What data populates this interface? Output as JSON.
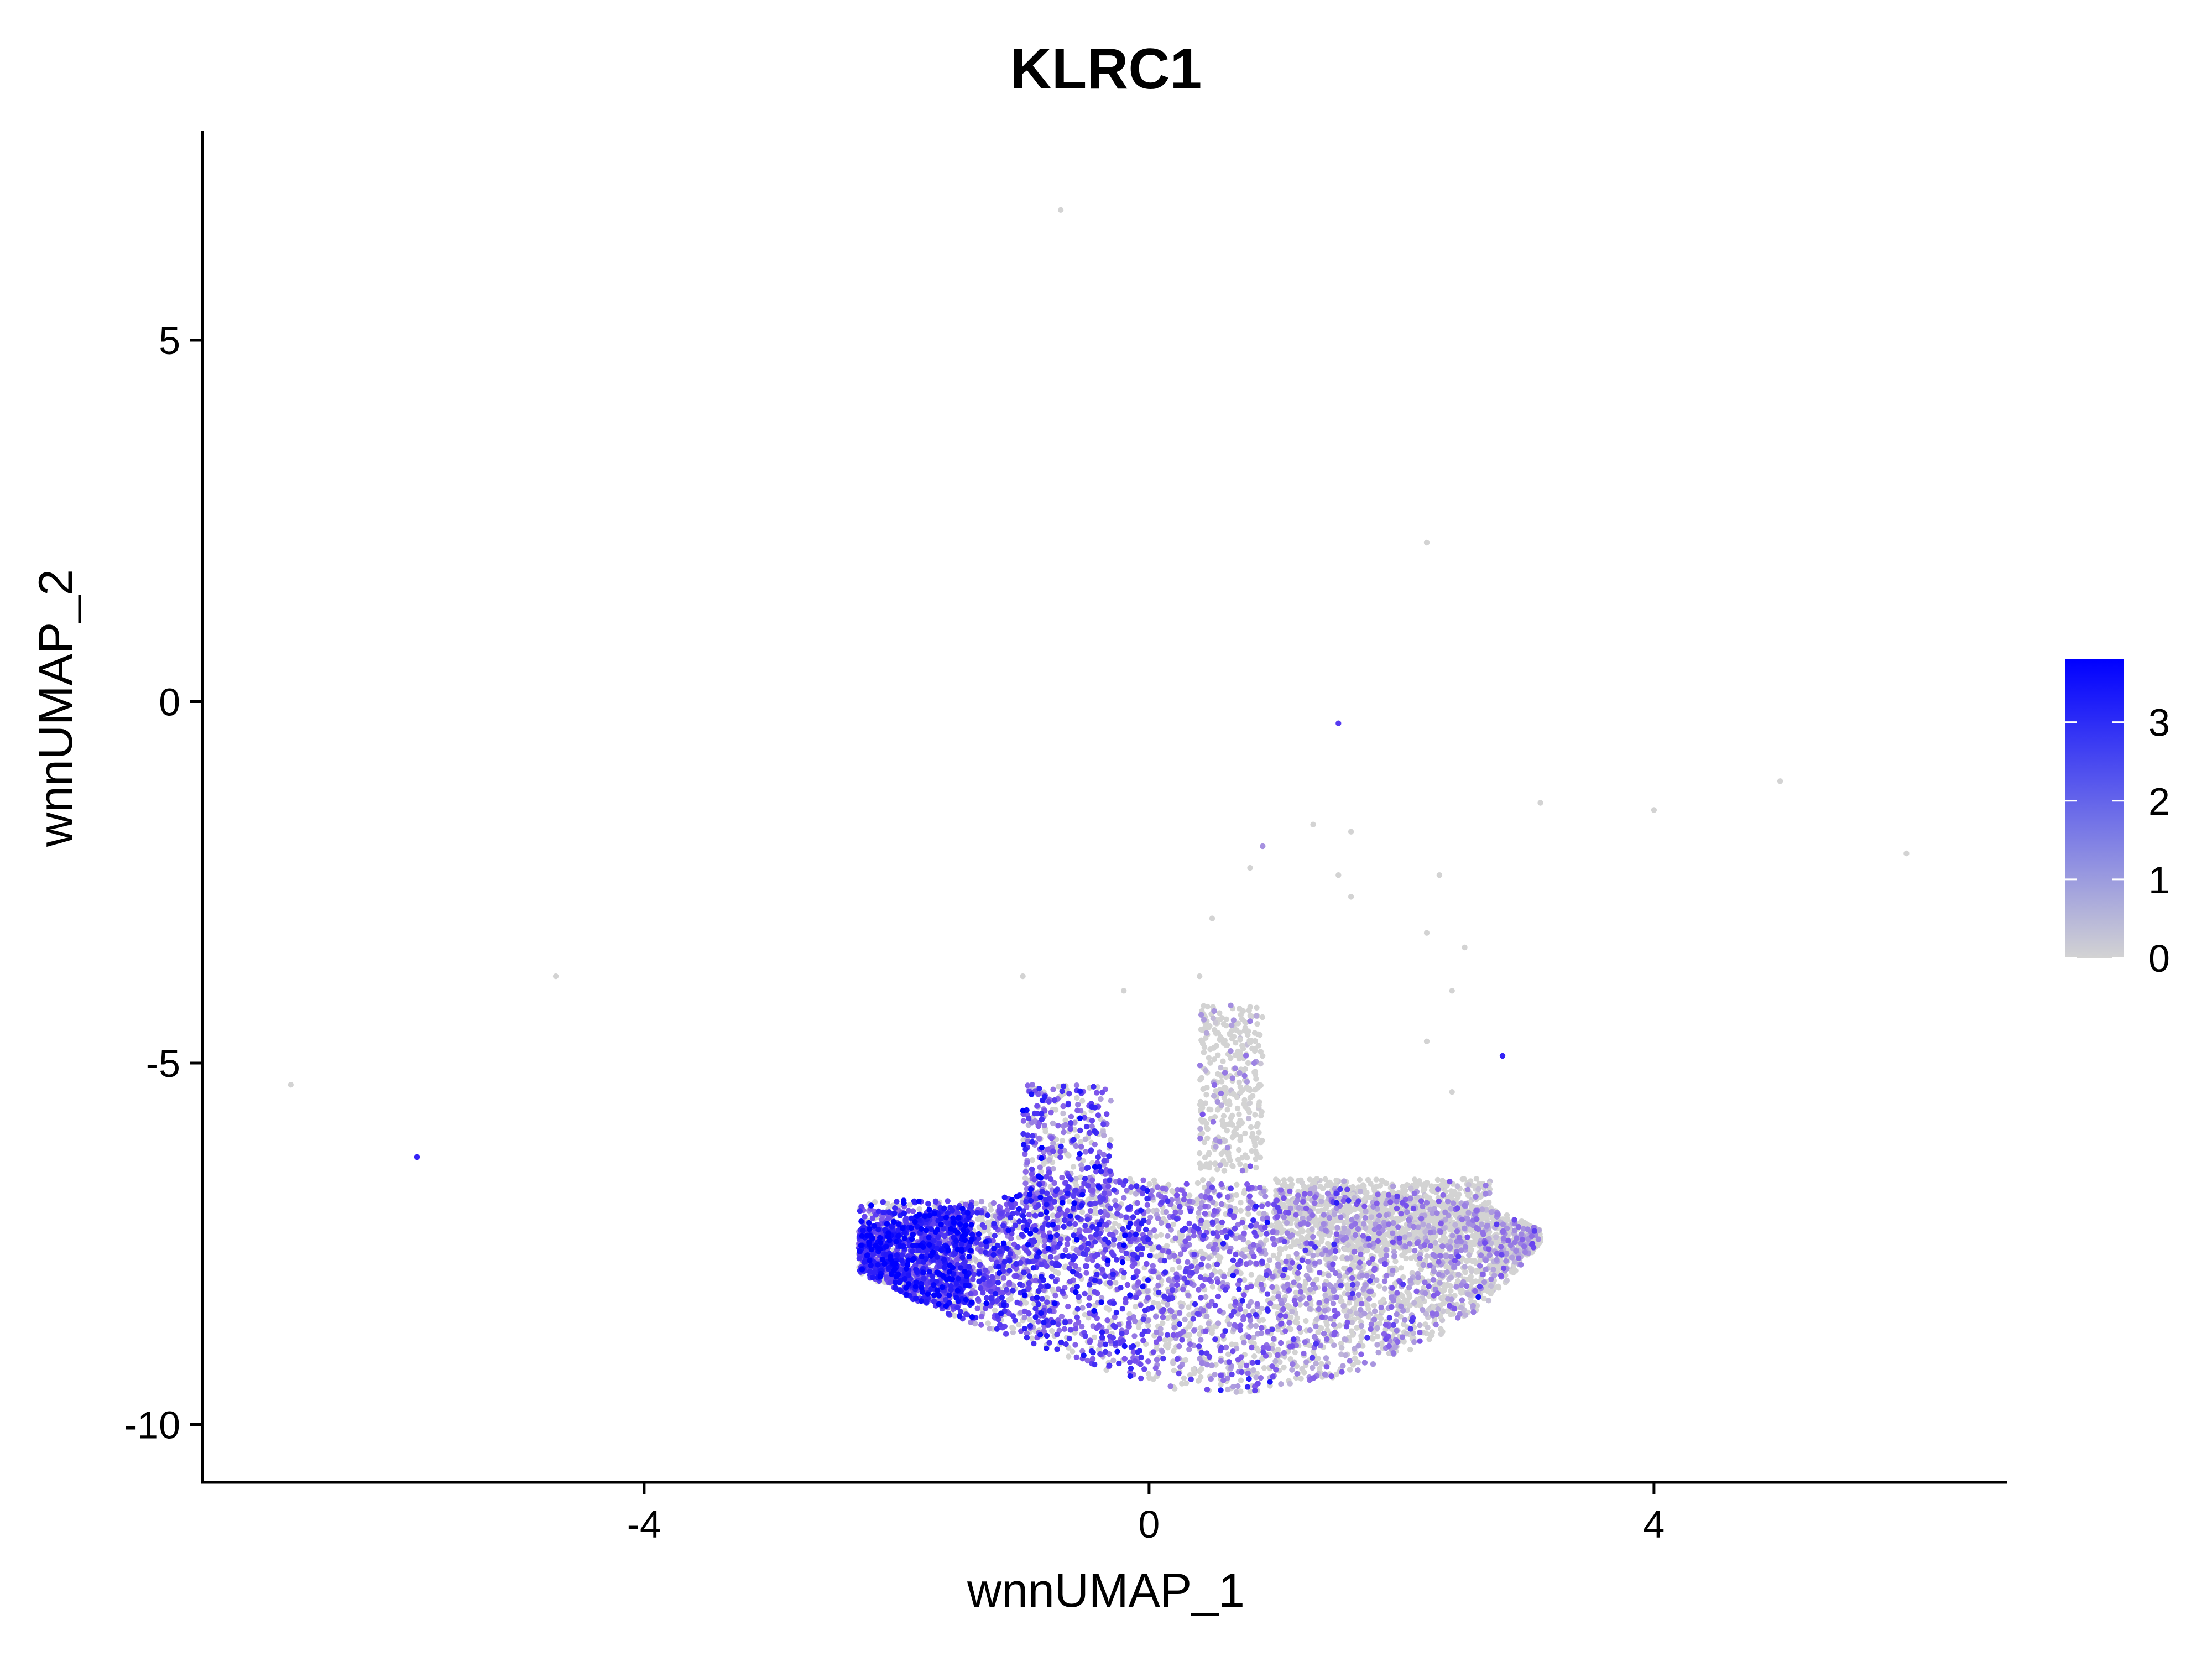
{
  "chart_data": {
    "type": "scatter",
    "title": "KLRC1",
    "xlabel": "wnnUMAP_1",
    "ylabel": "wnnUMAP_2",
    "xlim": [
      -7.5,
      6.8
    ],
    "ylim": [
      -10.8,
      7.9
    ],
    "x_ticks": [
      -4,
      0,
      4
    ],
    "x_tick_labels": [
      "-4",
      "0",
      "4"
    ],
    "y_ticks": [
      5,
      0,
      -5,
      -10
    ],
    "y_tick_labels": [
      "5",
      "0",
      "-5",
      "-10"
    ],
    "grid": false,
    "legend": {
      "position": "right",
      "type": "colorbar",
      "min": 0,
      "max": 3.8,
      "ticks": [
        0,
        1,
        2,
        3
      ],
      "tick_labels": [
        "0",
        "1",
        "2",
        "3"
      ],
      "low_color": "#d3d3d3",
      "high_color": "#0000ff"
    },
    "outlier_points": [
      {
        "x": -0.7,
        "y": 6.8,
        "value": 0
      },
      {
        "x": 2.2,
        "y": 2.2,
        "value": 0
      },
      {
        "x": 1.5,
        "y": -0.3,
        "value": 2.5
      },
      {
        "x": 5.0,
        "y": -1.1,
        "value": 0
      },
      {
        "x": 4.0,
        "y": -1.5,
        "value": 0
      },
      {
        "x": 3.1,
        "y": -1.4,
        "value": 0
      },
      {
        "x": 6.0,
        "y": -2.1,
        "value": 0
      },
      {
        "x": -6.8,
        "y": -5.3,
        "value": 0
      },
      {
        "x": -5.8,
        "y": -6.3,
        "value": 3.0
      },
      {
        "x": -4.7,
        "y": -3.8,
        "value": 0
      },
      {
        "x": 2.8,
        "y": -4.9,
        "value": 3.0
      },
      {
        "x": 1.6,
        "y": -1.8,
        "value": 0
      },
      {
        "x": 1.3,
        "y": -1.7,
        "value": 0
      },
      {
        "x": 0.9,
        "y": -2.0,
        "value": 1.0
      },
      {
        "x": 0.8,
        "y": -2.3,
        "value": 0
      },
      {
        "x": 1.5,
        "y": -2.4,
        "value": 0
      },
      {
        "x": 2.3,
        "y": -2.4,
        "value": 0
      },
      {
        "x": 1.6,
        "y": -2.7,
        "value": 0
      },
      {
        "x": 0.5,
        "y": -3.0,
        "value": 0
      },
      {
        "x": 2.2,
        "y": -3.2,
        "value": 0
      },
      {
        "x": 2.5,
        "y": -3.4,
        "value": 0
      },
      {
        "x": -1.0,
        "y": -3.8,
        "value": 0
      },
      {
        "x": 0.4,
        "y": -3.8,
        "value": 0
      },
      {
        "x": -0.2,
        "y": -4.0,
        "value": 0
      },
      {
        "x": 2.4,
        "y": -4.0,
        "value": 0
      },
      {
        "x": 2.2,
        "y": -4.7,
        "value": 0
      },
      {
        "x": 2.4,
        "y": -5.4,
        "value": 0
      }
    ],
    "clusters": [
      {
        "x_range": [
          -2.3,
          3.1
        ],
        "y_range": [
          -9.6,
          -6.6
        ],
        "points": 5200,
        "mean_value": 1.3,
        "description": "main cluster base"
      },
      {
        "x_range": [
          -2.3,
          -1.4
        ],
        "y_range": [
          -8.4,
          -6.9
        ],
        "points": 700,
        "mean_value": 2.6,
        "description": "left high-expression lobe"
      },
      {
        "x_range": [
          -1.0,
          -0.3
        ],
        "y_range": [
          -7.0,
          -5.3
        ],
        "points": 350,
        "mean_value": 1.8,
        "description": "upper-left spur"
      },
      {
        "x_range": [
          0.4,
          0.9
        ],
        "y_range": [
          -6.5,
          -4.2
        ],
        "points": 350,
        "mean_value": 0.4,
        "description": "central spur"
      },
      {
        "x_range": [
          1.0,
          2.7
        ],
        "y_range": [
          -7.6,
          -6.6
        ],
        "points": 900,
        "mean_value": 0.4,
        "description": "right grey region"
      }
    ]
  }
}
